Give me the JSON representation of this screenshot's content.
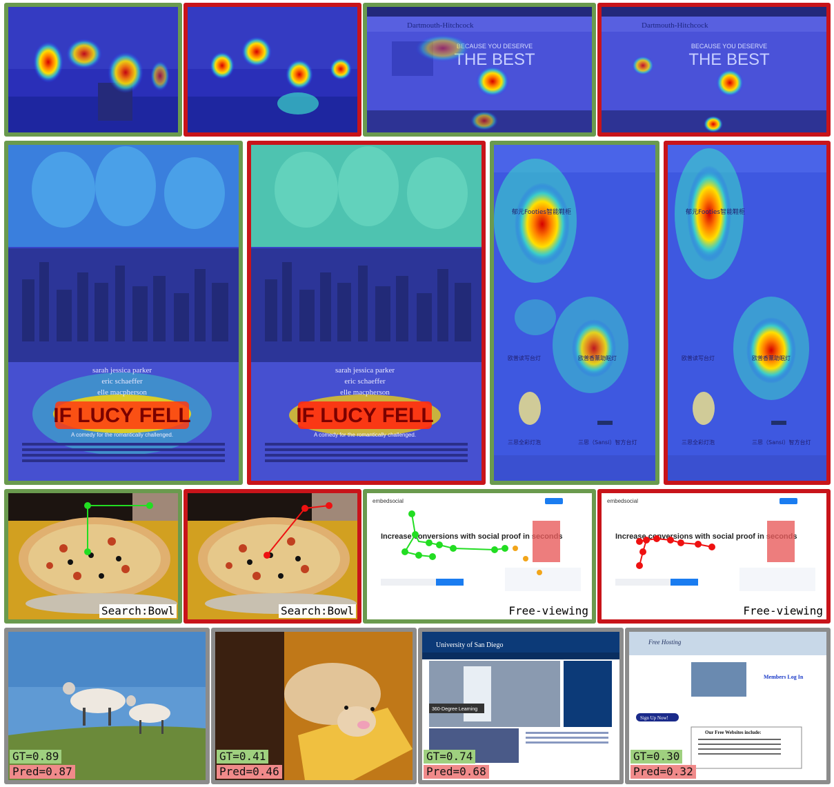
{
  "colors": {
    "correct_border": "#6a9a4e",
    "wrong_border": "#c8141a",
    "neutral_border": "#8c8c8c",
    "gt_label_bg": "#9fd07f",
    "pred_label_bg": "#f08a8a",
    "gt_scanpath": "#22dd22",
    "pred_scanpath": "#ee1111"
  },
  "row1": [
    {
      "border": "green",
      "scene": "street-saliency-gt"
    },
    {
      "border": "red",
      "scene": "street-saliency-pred"
    },
    {
      "border": "green",
      "scene": "website-saliency-gt",
      "header_text": "Dartmouth-Hitchcock",
      "banner_small": "BECAUSE YOU DESERVE",
      "banner_big": "THE BEST"
    },
    {
      "border": "red",
      "scene": "website-saliency-pred",
      "header_text": "Dartmouth-Hitchcock",
      "banner_small": "BECAUSE YOU DESERVE",
      "banner_big": "THE BEST"
    }
  ],
  "row2": [
    {
      "border": "green",
      "scene": "poster-saliency-gt",
      "credits": [
        "sarah jessica parker",
        "eric schaeffer",
        "elle macpherson"
      ],
      "title": "IF LUCY FELL",
      "tagline": "A comedy for the romantically challenged."
    },
    {
      "border": "red",
      "scene": "poster-saliency-pred",
      "credits": [
        "sarah jessica parker",
        "eric schaeffer",
        "elle macpherson"
      ],
      "title": "IF LUCY FELL",
      "tagline": "A comedy for the romantically challenged."
    },
    {
      "border": "green",
      "scene": "mobile-saliency-gt",
      "product": "郁元Footies智能鞋柜",
      "item1": "欧普读写台灯",
      "item2": "欧普香薰助眠灯",
      "item3": "三思全彩灯泡",
      "item4": "三思（Sansi）智方台灯"
    },
    {
      "border": "red",
      "scene": "mobile-saliency-pred",
      "product": "郁元Footies智能鞋柜",
      "item1": "欧普读写台灯",
      "item2": "欧普香薰助眠灯",
      "item3": "三思全彩灯泡",
      "item4": "三思（Sansi）智方台灯"
    }
  ],
  "row3": [
    {
      "border": "green",
      "tag": "Search:Bowl"
    },
    {
      "border": "red",
      "tag": "Search:Bowl"
    },
    {
      "border": "green",
      "tag": "Free-viewing",
      "logo": "embedsocial",
      "headline": "Increase conversions with social proof in seconds"
    },
    {
      "border": "red",
      "tag": "Free-viewing",
      "logo": "embedsocial",
      "headline": "Increase conversions with social proof in seconds"
    }
  ],
  "row4": [
    {
      "gt": "GT=0.89",
      "pred": "Pred=0.87",
      "scene": "sheep"
    },
    {
      "gt": "GT=0.41",
      "pred": "Pred=0.46",
      "scene": "hamster-toy"
    },
    {
      "gt": "GT=0.74",
      "pred": "Pred=0.68",
      "scene": "university-site",
      "site_title": "University of San Diego",
      "caption": "360-Degree Learning"
    },
    {
      "gt": "GT=0.30",
      "pred": "Pred=0.32",
      "scene": "hosting-site",
      "site_title": "Free Hosting",
      "login": "Members Log In",
      "signup": "Sign Up Now!",
      "offer": "Our Free Websites include:"
    }
  ]
}
